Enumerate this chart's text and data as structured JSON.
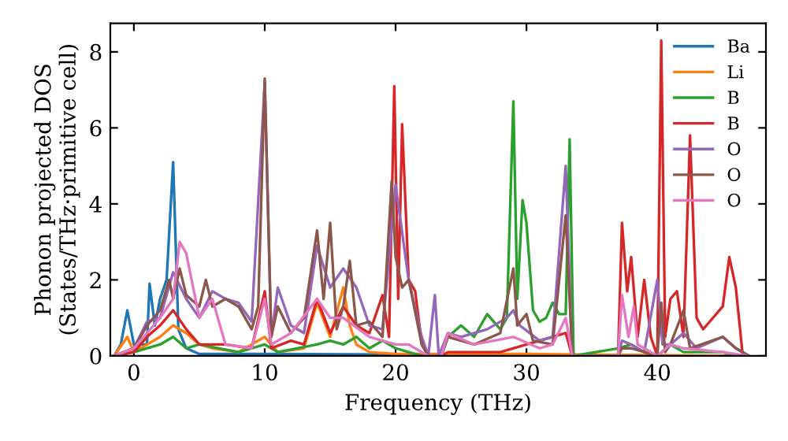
{
  "chart_data": {
    "type": "line",
    "xlabel": "Frequency (THz)",
    "ylabel": "Phonon projected DOS\n(States/THz·primitive cell)",
    "xlim": [
      -1.8,
      48.3
    ],
    "ylim": [
      0,
      8.75
    ],
    "xticks": [
      0,
      10,
      20,
      30,
      40
    ],
    "yticks": [
      0,
      2,
      4,
      6,
      8
    ],
    "grid": false,
    "legend": "top right",
    "marker": "none",
    "line_style": "solid",
    "series": [
      {
        "name": "Ba",
        "color": "#1f77b4",
        "x": [
          -1.5,
          -1,
          -0.5,
          0,
          0.5,
          1,
          1.2,
          1.6,
          2,
          2.5,
          3,
          3.4,
          4,
          5,
          10,
          46
        ],
        "values": [
          0,
          0.3,
          1.2,
          0.3,
          0.3,
          0.3,
          1.9,
          0.8,
          1.5,
          2.0,
          5.1,
          0.7,
          0.2,
          0.05,
          0.05,
          0
        ]
      },
      {
        "name": "Li",
        "color": "#ff7f0e",
        "x": [
          -1.5,
          -0.5,
          0,
          1,
          2,
          3,
          4,
          5,
          6,
          8,
          10,
          11,
          13,
          14,
          15,
          16,
          16.5,
          17,
          18,
          20,
          30,
          46
        ],
        "values": [
          0,
          0.5,
          0.1,
          0.3,
          0.5,
          0.8,
          0.6,
          0.3,
          0.2,
          0.1,
          0.5,
          0.1,
          0.2,
          1.4,
          0.5,
          1.8,
          0.8,
          0.3,
          0.1,
          0.05,
          0.05,
          0
        ]
      },
      {
        "name": "B",
        "color": "#2ca02c",
        "x": [
          -1.5,
          0,
          2,
          3,
          4,
          5,
          8,
          10,
          11,
          14,
          15,
          16,
          17,
          18,
          19,
          20,
          21,
          22,
          23.5,
          24,
          25,
          26,
          27,
          28,
          28.5,
          29,
          29.3,
          29.7,
          30,
          30.5,
          31,
          31.5,
          32,
          32.5,
          33,
          33.3,
          33.6,
          37,
          38,
          39,
          40,
          41,
          42,
          45,
          46
        ],
        "values": [
          0,
          0.1,
          0.3,
          0.5,
          0.2,
          0.3,
          0.1,
          0.3,
          0.1,
          0.3,
          0.4,
          0.3,
          0.5,
          0.2,
          0.4,
          0.2,
          0.1,
          0,
          0,
          0.5,
          0.8,
          0.5,
          1.1,
          0.7,
          1.0,
          6.7,
          1.5,
          4.1,
          3.5,
          1.2,
          0.9,
          1.0,
          1.4,
          1.1,
          1.1,
          5.7,
          0,
          0.2,
          0.3,
          0.1,
          0,
          0.3,
          0.1,
          0.1,
          0
        ]
      },
      {
        "name": "B",
        "color": "#d62728",
        "x": [
          -1.5,
          0,
          1,
          2,
          3,
          4,
          5,
          7,
          9,
          10,
          10.5,
          12,
          13,
          14,
          15,
          16,
          17,
          18,
          19,
          19.5,
          19.9,
          20.2,
          20.5,
          21,
          21.5,
          22,
          22.5,
          23.5,
          24,
          28,
          33,
          33.5,
          37,
          37.3,
          37.7,
          38,
          38.5,
          39,
          39.5,
          40,
          40.3,
          40.6,
          41,
          41.5,
          42,
          42.5,
          43,
          43.5,
          44,
          45,
          45.5,
          46,
          46.5,
          47
        ],
        "values": [
          0,
          0.1,
          0.5,
          0.8,
          1.2,
          0.7,
          0.3,
          0.3,
          0.2,
          1.7,
          0.2,
          0.4,
          0.3,
          1.5,
          0.6,
          1.3,
          0.8,
          0.6,
          1.6,
          0.5,
          7.1,
          1.5,
          6.1,
          2.0,
          1.7,
          0.3,
          0,
          0,
          0.1,
          0.1,
          0.6,
          0,
          0,
          3.5,
          1.7,
          2.6,
          0.5,
          2.0,
          0.5,
          0,
          8.3,
          0.5,
          1.5,
          1.7,
          0.5,
          5.8,
          1.0,
          0.7,
          0.9,
          1.3,
          2.6,
          1.8,
          0.1,
          0
        ]
      },
      {
        "name": "O",
        "color": "#9467bd",
        "x": [
          -1.5,
          0,
          1,
          2,
          3,
          4,
          5,
          6,
          7,
          8,
          9,
          10,
          10.5,
          11,
          12,
          13,
          14,
          15,
          16,
          17,
          18,
          19,
          20,
          21,
          22,
          22.5,
          23,
          23.3,
          24,
          25,
          27,
          28.5,
          29,
          29.5,
          31,
          32,
          33,
          33.5,
          37,
          37.3,
          38,
          39,
          40,
          40.4,
          41,
          42,
          43,
          45,
          46,
          47
        ],
        "values": [
          0,
          0.2,
          0.9,
          1.0,
          2.2,
          1.5,
          1.0,
          1.7,
          1.5,
          1.4,
          0.9,
          7.2,
          0.5,
          1.8,
          0.8,
          0.6,
          2.9,
          1.8,
          2.3,
          1.8,
          0.8,
          0.7,
          4.5,
          2.0,
          0.5,
          0,
          1.6,
          0,
          0.6,
          0.5,
          0.7,
          1.0,
          1.2,
          0.8,
          0.4,
          0.5,
          5.0,
          0,
          0,
          0.4,
          0.3,
          0.1,
          2.0,
          0.3,
          0.3,
          0.6,
          0.2,
          0.5,
          0.2,
          0
        ]
      },
      {
        "name": "O",
        "color": "#8c564b",
        "x": [
          -1.5,
          0,
          1,
          2,
          2.7,
          3,
          3.5,
          4,
          5,
          5.5,
          6,
          7,
          8,
          9,
          9.5,
          10,
          10.5,
          11,
          12,
          13,
          14,
          14.5,
          15,
          15.5,
          16,
          16.5,
          17,
          18,
          19,
          19.7,
          20,
          20.5,
          21,
          22,
          22.5,
          23.5,
          24,
          26,
          28,
          29,
          29.3,
          30,
          30.5,
          32,
          33,
          33.5,
          37,
          37.3,
          38,
          40,
          40.3,
          40.6,
          41,
          42,
          42.5,
          45,
          46,
          47
        ],
        "values": [
          0,
          0.2,
          0.8,
          1.2,
          2.0,
          1.5,
          2.3,
          1.6,
          1.3,
          2.0,
          1.3,
          1.5,
          1.3,
          0.7,
          1.3,
          7.3,
          0.5,
          1.3,
          0.6,
          1.0,
          3.3,
          1.5,
          3.5,
          0.7,
          1.3,
          2.5,
          0.8,
          0.9,
          0.5,
          4.6,
          2.6,
          1.8,
          2.0,
          0.3,
          0,
          0,
          0.5,
          0.3,
          0.6,
          2.3,
          0.8,
          1.1,
          0.4,
          0.3,
          3.7,
          0,
          0,
          0.2,
          0.2,
          0,
          1.4,
          0.1,
          0.3,
          1.2,
          0.2,
          0.5,
          0.2,
          0
        ]
      },
      {
        "name": "O",
        "color": "#e377c2",
        "x": [
          -1.5,
          0,
          1,
          2,
          3,
          3.5,
          4,
          5,
          6,
          7,
          9,
          10,
          10.5,
          12,
          14,
          15,
          16,
          18,
          20,
          21,
          22,
          22.5,
          23.5,
          24,
          26,
          29,
          31,
          32,
          33,
          33.5,
          37,
          37.3,
          37.8,
          38.2,
          38.5,
          39,
          40,
          41,
          42,
          45,
          47
        ],
        "values": [
          0,
          0.2,
          0.6,
          1.0,
          1.5,
          3.0,
          2.7,
          1.0,
          1.5,
          0.3,
          0.2,
          1.5,
          0.3,
          0.6,
          1.5,
          1.0,
          1.0,
          0.5,
          0.3,
          0.3,
          0.1,
          0,
          0,
          0.6,
          0.3,
          0.5,
          0.2,
          0.3,
          1.0,
          0,
          0,
          1.6,
          0.5,
          1.3,
          0.3,
          0.2,
          0,
          0.3,
          0.2,
          0.1,
          0
        ]
      }
    ]
  }
}
